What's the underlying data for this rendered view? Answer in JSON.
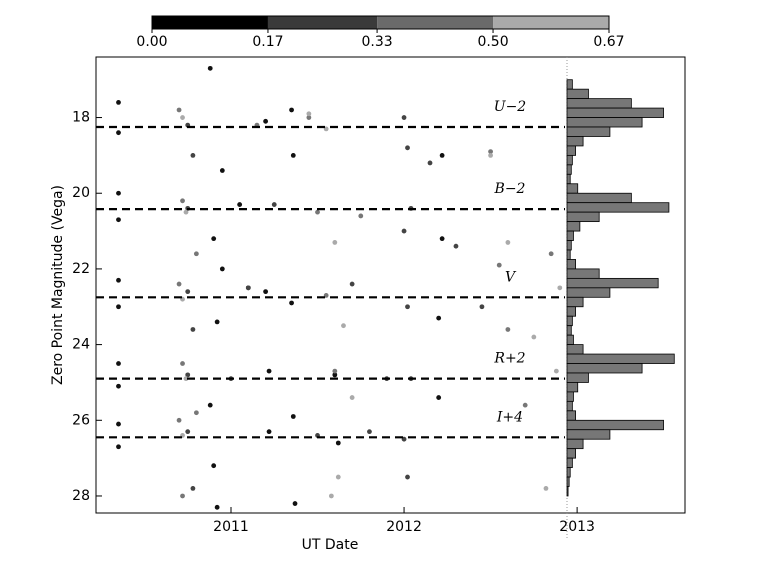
{
  "chart_data": [
    {
      "type": "scatter",
      "x_label": "UT Date",
      "y_label": "Zero Point Magnitude (Vega)",
      "xlim": [
        2010.22,
        2012.93
      ],
      "xticks": [
        2011,
        2012,
        2013
      ],
      "ylim": [
        16.4,
        28.45
      ],
      "invert_y": true,
      "yticks": [
        18,
        20,
        22,
        24,
        26,
        28
      ],
      "bands": [
        {
          "label": "U−2",
          "value": 18.25
        },
        {
          "label": "B−2",
          "value": 20.42
        },
        {
          "label": "V",
          "value": 22.75
        },
        {
          "label": "R+2",
          "value": 24.9
        },
        {
          "label": "I+4",
          "value": 26.45
        }
      ],
      "colorbar": {
        "ticks": [
          {
            "value": 0,
            "label": "0.00"
          },
          {
            "value": 0.17,
            "label": "0.17"
          },
          {
            "value": 0.33,
            "label": "0.33"
          },
          {
            "value": 0.5,
            "label": "0.50"
          },
          {
            "value": 0.67,
            "label": "0.67"
          }
        ],
        "colors": [
          "#000000",
          "#3a3a3a",
          "#6a6a6a",
          "#aaaaaa"
        ]
      },
      "series": [
        {
          "color": "#111111",
          "x": [
            2010.35,
            2010.35,
            2010.35,
            2010.35,
            2010.35,
            2010.35,
            2010.35,
            2010.35,
            2010.35,
            2010.35,
            2010.88,
            2010.9,
            2010.92,
            2010.88,
            2010.9,
            2010.92,
            2010.95,
            2010.95,
            2011.2,
            2011.2,
            2011.22,
            2011.22,
            2011.35,
            2011.36,
            2011.35,
            2011.36,
            2011.37,
            2011.05,
            2011.1,
            2012.22,
            2012.22,
            2012.2,
            2012.2,
            2011.6,
            2011.62
          ],
          "values": [
            17.6,
            18.4,
            20.0,
            20.7,
            22.3,
            23.0,
            24.5,
            25.1,
            26.1,
            26.7,
            16.7,
            21.2,
            23.4,
            25.6,
            27.2,
            28.3,
            19.4,
            22.0,
            18.1,
            22.6,
            24.7,
            26.3,
            17.8,
            19.0,
            22.9,
            25.9,
            28.2,
            20.3,
            22.5,
            19.0,
            21.2,
            23.3,
            25.4,
            24.8,
            26.6
          ]
        },
        {
          "color": "#444444",
          "x": [
            2010.75,
            2010.75,
            2010.75,
            2010.75,
            2010.75,
            2010.78,
            2010.78,
            2010.78,
            2011.0,
            2011.1,
            2011.25,
            2011.5,
            2011.7,
            2011.9,
            2011.8,
            2012.0,
            2012.02,
            2012.04,
            2012.0,
            2012.02,
            2012.04,
            2012.0,
            2012.02,
            2012.15,
            2012.3,
            2012.45
          ],
          "values": [
            18.2,
            20.4,
            22.6,
            24.8,
            26.3,
            19.0,
            23.6,
            27.8,
            24.9,
            22.5,
            20.3,
            26.4,
            22.4,
            24.9,
            26.3,
            18.0,
            18.8,
            20.4,
            21.0,
            23.0,
            24.9,
            26.5,
            27.5,
            19.2,
            21.4,
            23.0
          ]
        },
        {
          "color": "#777777",
          "x": [
            2010.7,
            2010.72,
            2010.7,
            2010.72,
            2010.7,
            2010.72,
            2010.8,
            2010.8,
            2011.15,
            2011.45,
            2011.5,
            2011.55,
            2011.6,
            2011.75,
            2012.5,
            2012.55,
            2012.6,
            2012.7,
            2012.85
          ],
          "values": [
            17.8,
            20.2,
            22.4,
            24.5,
            26.0,
            28.0,
            21.6,
            25.8,
            18.2,
            18.0,
            20.5,
            22.7,
            24.7,
            20.6,
            18.9,
            21.9,
            23.6,
            25.6,
            21.6
          ]
        },
        {
          "color": "#aaaaaa",
          "x": [
            2010.72,
            2010.74,
            2010.72,
            2010.74,
            2010.72,
            2011.45,
            2011.55,
            2011.6,
            2011.65,
            2011.7,
            2011.62,
            2011.58,
            2012.5,
            2012.6,
            2012.75,
            2012.82,
            2012.88,
            2012.9
          ],
          "values": [
            18.0,
            20.5,
            22.8,
            24.9,
            26.4,
            17.9,
            18.3,
            21.3,
            23.5,
            25.4,
            27.5,
            28.0,
            19.0,
            21.3,
            23.8,
            27.8,
            24.7,
            22.5
          ]
        }
      ]
    },
    {
      "type": "histogram",
      "orientation": "horizontal",
      "color": "#777777",
      "xlim": [
        0,
        110
      ],
      "ylim": [
        16.4,
        28.45
      ],
      "invert_y": true,
      "bins": [
        17.0,
        17.25,
        17.5,
        17.75,
        18.0,
        18.25,
        18.5,
        18.75,
        19.0,
        19.25,
        19.5,
        19.75,
        20.0,
        20.25,
        20.5,
        20.75,
        21.0,
        21.25,
        21.5,
        21.75,
        22.0,
        22.25,
        22.5,
        22.75,
        23.0,
        23.25,
        23.5,
        23.75,
        24.0,
        24.25,
        24.5,
        24.75,
        25.0,
        25.25,
        25.5,
        25.75,
        26.0,
        26.25,
        26.5,
        26.75,
        27.0,
        27.25,
        27.5,
        27.75,
        28.0
      ],
      "counts": [
        5,
        20,
        60,
        90,
        70,
        40,
        15,
        8,
        5,
        4,
        3,
        10,
        60,
        95,
        30,
        12,
        6,
        4,
        3,
        8,
        30,
        85,
        40,
        15,
        8,
        5,
        4,
        6,
        15,
        100,
        70,
        20,
        10,
        6,
        5,
        8,
        90,
        40,
        15,
        8,
        5,
        3,
        2,
        1
      ]
    }
  ]
}
